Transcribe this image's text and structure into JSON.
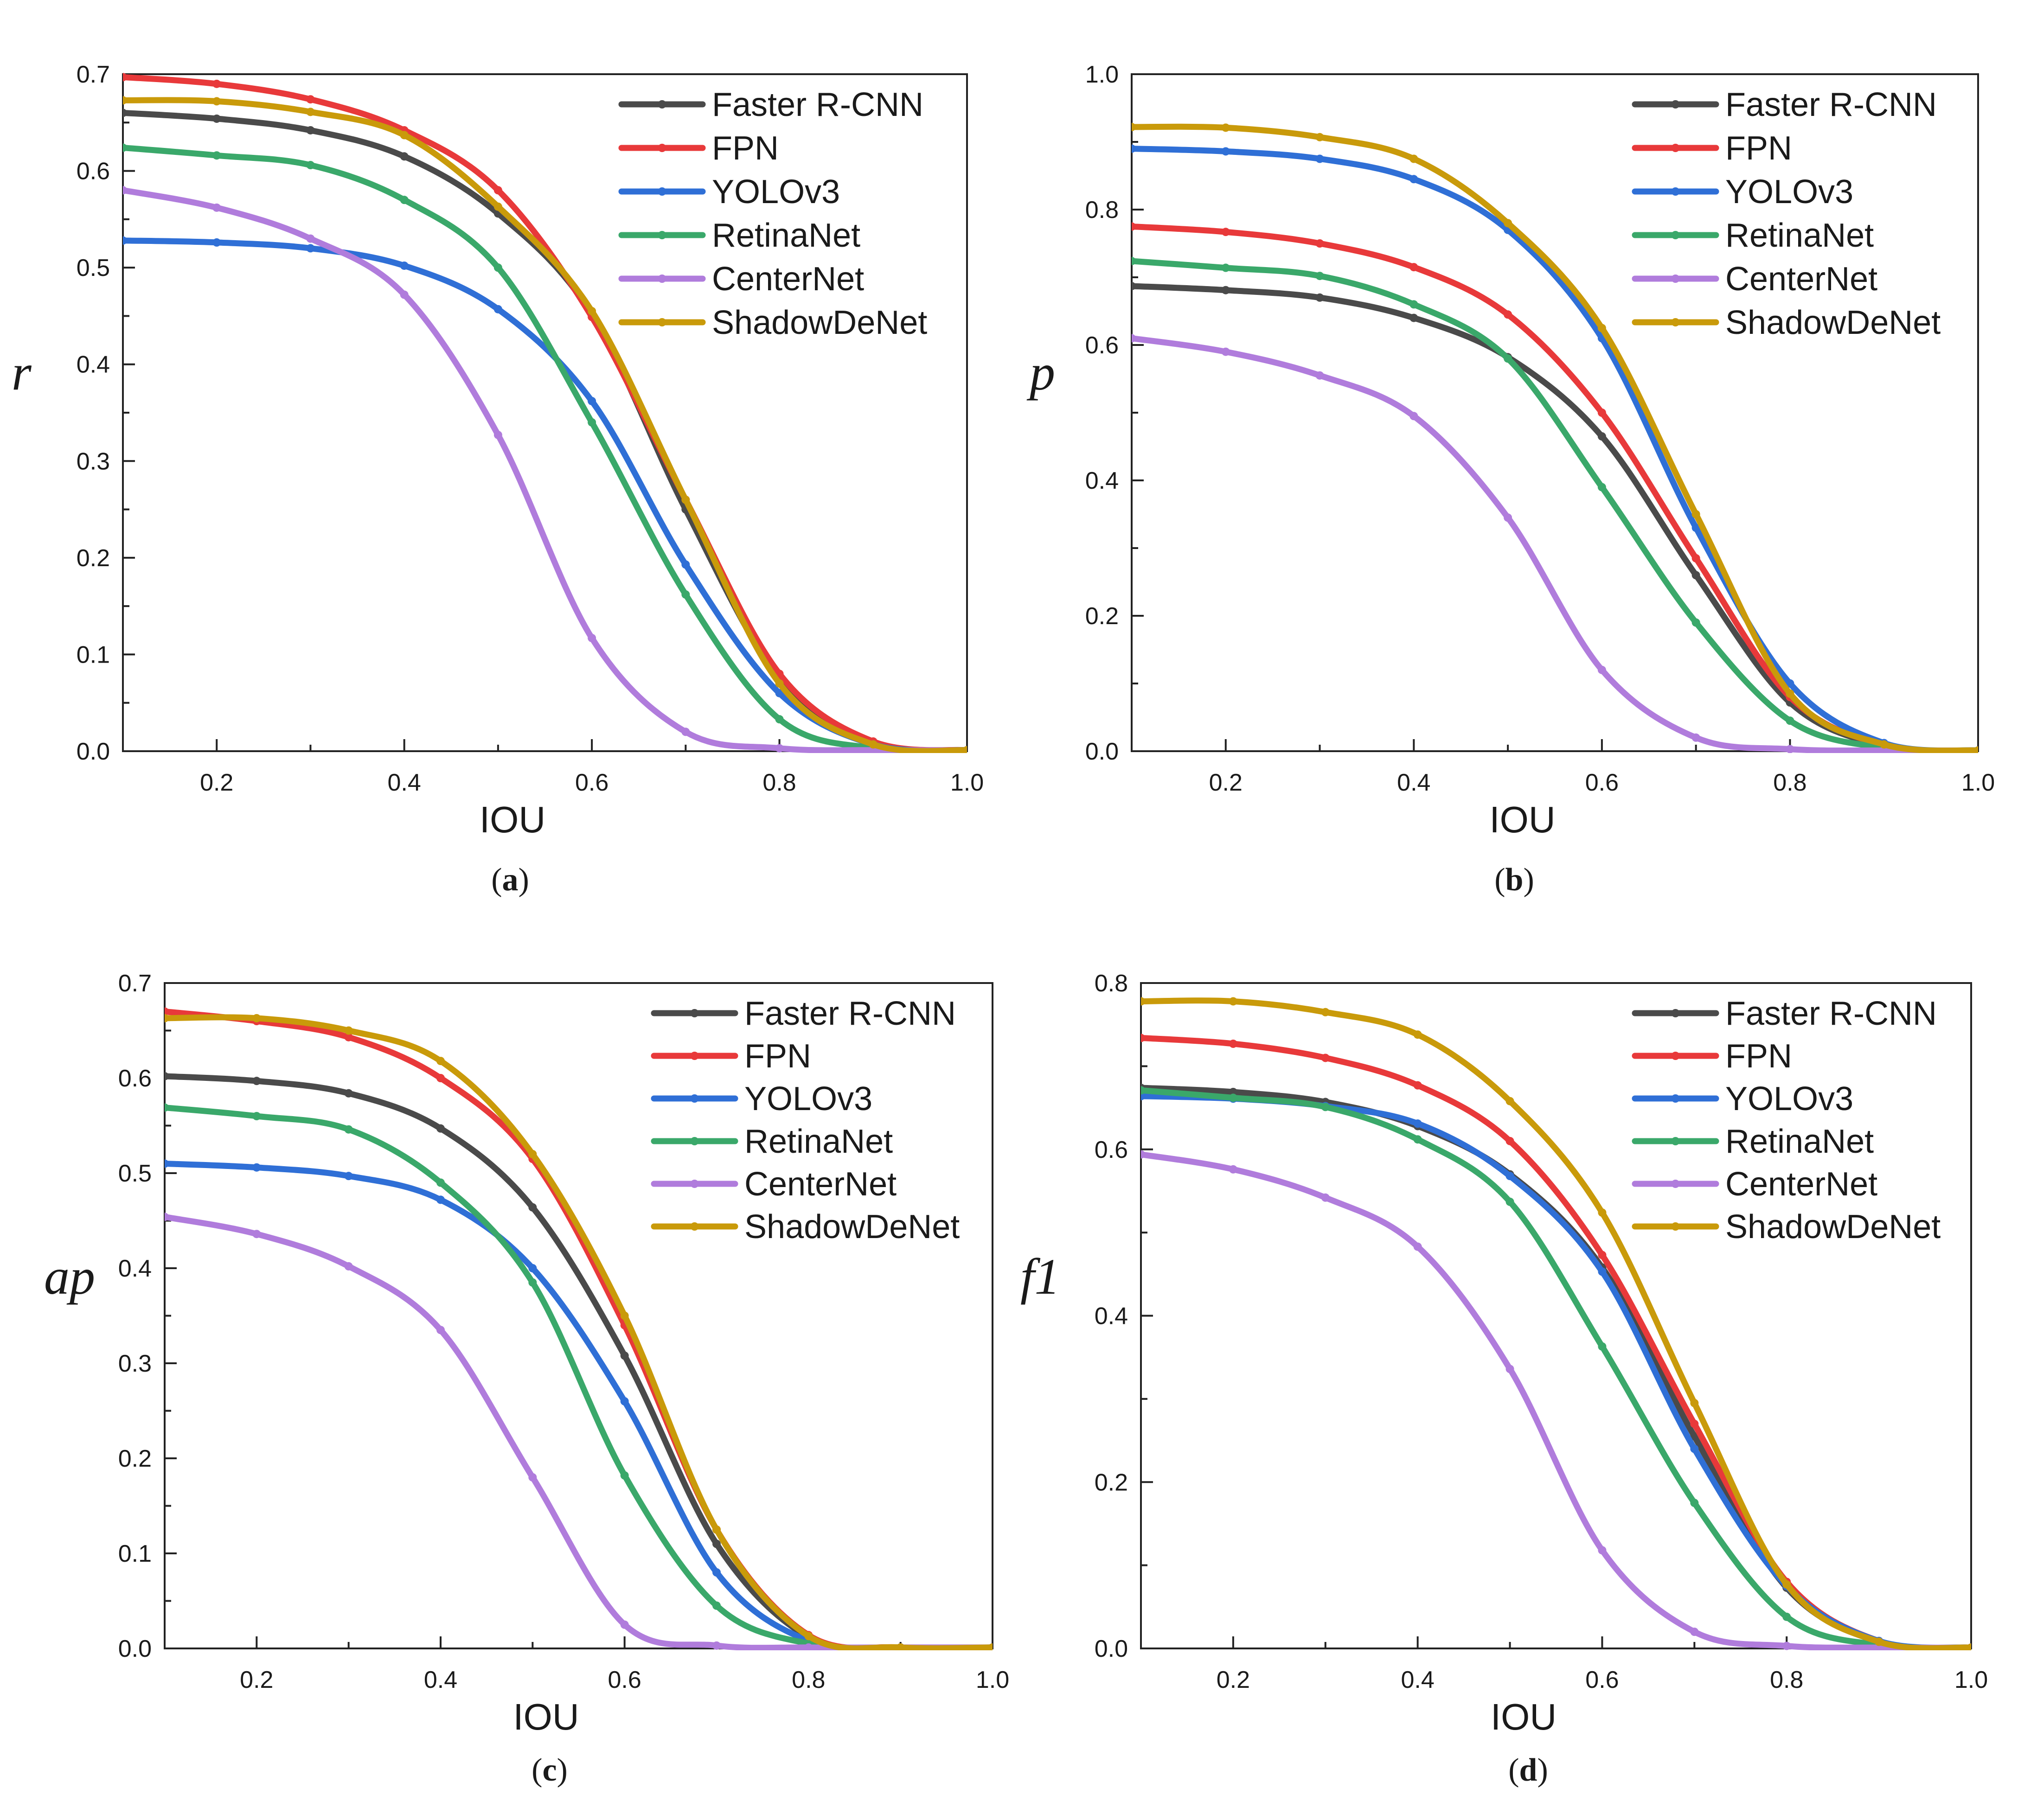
{
  "chart_data": [
    {
      "type": "line",
      "caption_letter": "a",
      "xlabel": "IOU",
      "ylabel": "r",
      "xlim": [
        0.1,
        1.0
      ],
      "ylim": [
        0.0,
        0.7
      ],
      "xticks": [
        "0.2",
        "0.4",
        "0.6",
        "0.8",
        "1.0"
      ],
      "xtick_values": [
        0.2,
        0.4,
        0.6,
        0.8,
        1.0
      ],
      "yticks": [
        "0.0",
        "0.1",
        "0.2",
        "0.3",
        "0.4",
        "0.5",
        "0.6",
        "0.7"
      ],
      "ytick_values": [
        0.0,
        0.1,
        0.2,
        0.3,
        0.4,
        0.5,
        0.6,
        0.7
      ],
      "legend_position": "top-right",
      "x": [
        0.1,
        0.2,
        0.3,
        0.4,
        0.5,
        0.6,
        0.7,
        0.8,
        0.9,
        1.0
      ],
      "series": [
        {
          "name": "Faster R-CNN",
          "color": "#4a4a4a",
          "values": [
            0.66,
            0.654,
            0.642,
            0.615,
            0.556,
            0.452,
            0.25,
            0.075,
            0.008,
            0.001
          ]
        },
        {
          "name": "FPN",
          "color": "#e8393a",
          "values": [
            0.697,
            0.69,
            0.674,
            0.642,
            0.58,
            0.449,
            0.26,
            0.08,
            0.01,
            0.001
          ]
        },
        {
          "name": "YOLOv3",
          "color": "#2f6fd6",
          "values": [
            0.528,
            0.526,
            0.52,
            0.502,
            0.457,
            0.362,
            0.193,
            0.06,
            0.007,
            0.001
          ]
        },
        {
          "name": "RetinaNet",
          "color": "#3aa86a",
          "values": [
            0.624,
            0.616,
            0.606,
            0.57,
            0.5,
            0.34,
            0.162,
            0.033,
            0.003,
            0.001
          ]
        },
        {
          "name": "CenterNet",
          "color": "#b07cdc",
          "values": [
            0.58,
            0.562,
            0.53,
            0.472,
            0.327,
            0.117,
            0.02,
            0.003,
            0.001,
            0.001
          ]
        },
        {
          "name": "ShadowDeNet",
          "color": "#c99a0a",
          "values": [
            0.673,
            0.672,
            0.661,
            0.637,
            0.563,
            0.455,
            0.26,
            0.07,
            0.007,
            0.001
          ]
        }
      ]
    },
    {
      "type": "line",
      "caption_letter": "b",
      "xlabel": "IOU",
      "ylabel": "p",
      "xlim": [
        0.1,
        1.0
      ],
      "ylim": [
        0.0,
        1.0
      ],
      "xticks": [
        "0.2",
        "0.4",
        "0.6",
        "0.8",
        "1.0"
      ],
      "xtick_values": [
        0.2,
        0.4,
        0.6,
        0.8,
        1.0
      ],
      "yticks": [
        "0.0",
        "0.2",
        "0.4",
        "0.6",
        "0.8",
        "1.0"
      ],
      "ytick_values": [
        0.0,
        0.2,
        0.4,
        0.6,
        0.8,
        1.0
      ],
      "legend_position": "top-right",
      "x": [
        0.1,
        0.2,
        0.3,
        0.4,
        0.5,
        0.6,
        0.7,
        0.8,
        0.9,
        1.0
      ],
      "series": [
        {
          "name": "Faster R-CNN",
          "color": "#4a4a4a",
          "values": [
            0.687,
            0.681,
            0.67,
            0.64,
            0.582,
            0.465,
            0.26,
            0.072,
            0.008,
            0.001
          ]
        },
        {
          "name": "FPN",
          "color": "#e8393a",
          "values": [
            0.775,
            0.767,
            0.75,
            0.715,
            0.645,
            0.5,
            0.285,
            0.08,
            0.009,
            0.001
          ]
        },
        {
          "name": "YOLOv3",
          "color": "#2f6fd6",
          "values": [
            0.89,
            0.886,
            0.875,
            0.845,
            0.77,
            0.61,
            0.33,
            0.1,
            0.012,
            0.001
          ]
        },
        {
          "name": "RetinaNet",
          "color": "#3aa86a",
          "values": [
            0.724,
            0.714,
            0.702,
            0.66,
            0.58,
            0.39,
            0.19,
            0.045,
            0.005,
            0.001
          ]
        },
        {
          "name": "CenterNet",
          "color": "#b07cdc",
          "values": [
            0.61,
            0.59,
            0.555,
            0.495,
            0.345,
            0.12,
            0.02,
            0.003,
            0.001,
            0.001
          ]
        },
        {
          "name": "ShadowDeNet",
          "color": "#c99a0a",
          "values": [
            0.922,
            0.921,
            0.907,
            0.875,
            0.78,
            0.625,
            0.35,
            0.085,
            0.01,
            0.001
          ]
        }
      ]
    },
    {
      "type": "line",
      "caption_letter": "c",
      "xlabel": "IOU",
      "ylabel": "ap",
      "xlim": [
        0.1,
        1.0
      ],
      "ylim": [
        0.0,
        0.7
      ],
      "xticks": [
        "0.2",
        "0.4",
        "0.6",
        "0.8",
        "1.0"
      ],
      "xtick_values": [
        0.2,
        0.4,
        0.6,
        0.8,
        1.0
      ],
      "yticks": [
        "0.0",
        "0.1",
        "0.2",
        "0.3",
        "0.4",
        "0.5",
        "0.6",
        "0.7"
      ],
      "ytick_values": [
        0.0,
        0.1,
        0.2,
        0.3,
        0.4,
        0.5,
        0.6,
        0.7
      ],
      "legend_position": "top-right",
      "x": [
        0.1,
        0.2,
        0.3,
        0.4,
        0.5,
        0.6,
        0.7,
        0.8,
        0.9,
        1.0
      ],
      "series": [
        {
          "name": "Faster R-CNN",
          "color": "#4a4a4a",
          "values": [
            0.602,
            0.597,
            0.584,
            0.547,
            0.464,
            0.308,
            0.11,
            0.012,
            0.001,
            0.001
          ]
        },
        {
          "name": "FPN",
          "color": "#e8393a",
          "values": [
            0.67,
            0.66,
            0.643,
            0.6,
            0.515,
            0.34,
            0.125,
            0.014,
            0.001,
            0.001
          ]
        },
        {
          "name": "YOLOv3",
          "color": "#2f6fd6",
          "values": [
            0.51,
            0.506,
            0.497,
            0.472,
            0.4,
            0.26,
            0.08,
            0.008,
            0.001,
            0.001
          ]
        },
        {
          "name": "RetinaNet",
          "color": "#3aa86a",
          "values": [
            0.569,
            0.56,
            0.546,
            0.49,
            0.385,
            0.182,
            0.045,
            0.005,
            0.001,
            0.001
          ]
        },
        {
          "name": "CenterNet",
          "color": "#b07cdc",
          "values": [
            0.454,
            0.436,
            0.402,
            0.335,
            0.18,
            0.025,
            0.003,
            0.001,
            0.001,
            0.001
          ]
        },
        {
          "name": "ShadowDeNet",
          "color": "#c99a0a",
          "values": [
            0.663,
            0.663,
            0.65,
            0.618,
            0.52,
            0.35,
            0.125,
            0.013,
            0.001,
            0.001
          ]
        }
      ]
    },
    {
      "type": "line",
      "caption_letter": "d",
      "xlabel": "IOU",
      "ylabel": "f1",
      "xlim": [
        0.1,
        1.0
      ],
      "ylim": [
        0.0,
        0.8
      ],
      "xticks": [
        "0.2",
        "0.4",
        "0.6",
        "0.8",
        "1.0"
      ],
      "xtick_values": [
        0.2,
        0.4,
        0.6,
        0.8,
        1.0
      ],
      "yticks": [
        "0.0",
        "0.2",
        "0.4",
        "0.6",
        "0.8"
      ],
      "ytick_values": [
        0.0,
        0.2,
        0.4,
        0.6,
        0.8
      ],
      "legend_position": "top-right",
      "x": [
        0.1,
        0.2,
        0.3,
        0.4,
        0.5,
        0.6,
        0.7,
        0.8,
        0.9,
        1.0
      ],
      "series": [
        {
          "name": "Faster R-CNN",
          "color": "#4a4a4a",
          "values": [
            0.674,
            0.669,
            0.657,
            0.628,
            0.57,
            0.458,
            0.255,
            0.073,
            0.008,
            0.001
          ]
        },
        {
          "name": "FPN",
          "color": "#e8393a",
          "values": [
            0.734,
            0.727,
            0.71,
            0.677,
            0.61,
            0.473,
            0.27,
            0.08,
            0.009,
            0.001
          ]
        },
        {
          "name": "YOLOv3",
          "color": "#2f6fd6",
          "values": [
            0.664,
            0.661,
            0.652,
            0.631,
            0.568,
            0.453,
            0.24,
            0.075,
            0.009,
            0.001
          ]
        },
        {
          "name": "RetinaNet",
          "color": "#3aa86a",
          "values": [
            0.671,
            0.662,
            0.651,
            0.612,
            0.537,
            0.363,
            0.175,
            0.038,
            0.004,
            0.001
          ]
        },
        {
          "name": "CenterNet",
          "color": "#b07cdc",
          "values": [
            0.594,
            0.576,
            0.542,
            0.483,
            0.336,
            0.118,
            0.02,
            0.003,
            0.001,
            0.001
          ]
        },
        {
          "name": "ShadowDeNet",
          "color": "#c99a0a",
          "values": [
            0.778,
            0.778,
            0.765,
            0.738,
            0.658,
            0.524,
            0.295,
            0.077,
            0.008,
            0.001
          ]
        }
      ]
    }
  ]
}
